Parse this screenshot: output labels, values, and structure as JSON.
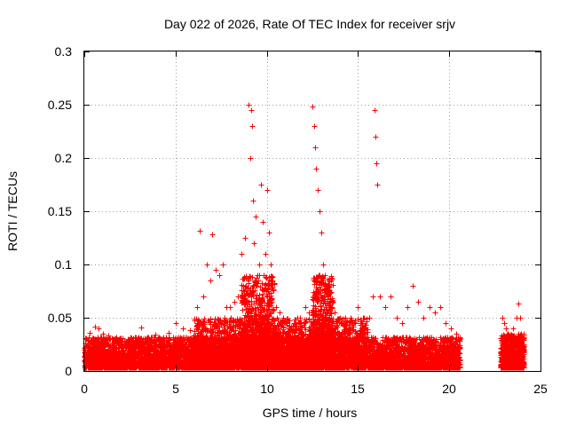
{
  "chart_data": {
    "type": "scatter",
    "title": "Day 022 of 2026, Rate Of TEC Index for receiver srjv",
    "xlabel": "GPS time / hours",
    "ylabel": "ROTI / TECUs",
    "xlim": [
      0,
      25
    ],
    "ylim": [
      0,
      0.3
    ],
    "x_ticks": [
      "0",
      "5",
      "10",
      "15",
      "20",
      "25"
    ],
    "y_ticks": [
      "0",
      "0.05",
      "0.1",
      "0.15",
      "0.2",
      "0.25",
      "0.3"
    ],
    "x_tick_values": [
      0,
      5,
      10,
      15,
      20,
      25
    ],
    "y_tick_values": [
      0,
      0.05,
      0.1,
      0.15,
      0.2,
      0.25,
      0.3
    ],
    "grid": true,
    "marker": "plus",
    "color": "#ff0000",
    "series": [
      {
        "x": [
          0.1,
          0.3,
          0.6,
          0.8,
          1.0,
          1.3,
          1.6,
          2.0,
          2.4,
          2.8,
          3.1,
          3.5,
          3.9,
          4.2,
          4.6,
          5.0,
          5.4,
          5.8,
          6.2,
          6.3,
          6.5,
          6.7,
          6.9,
          7.0,
          7.2,
          7.4,
          7.6,
          7.8,
          8.0,
          8.2,
          8.4,
          8.6,
          8.8,
          9.0,
          9.1,
          9.15,
          9.2,
          9.25,
          9.3,
          9.4,
          9.5,
          9.6,
          9.7,
          9.8,
          9.9,
          10.0,
          10.1,
          10.2,
          10.3,
          10.5,
          10.7,
          10.9,
          11.2,
          11.5,
          11.8,
          12.1,
          12.3,
          12.5,
          12.6,
          12.65,
          12.7,
          12.8,
          12.9,
          13.0,
          13.1,
          13.2,
          13.3,
          13.5,
          13.7,
          14.0,
          14.3,
          14.6,
          15.0,
          15.3,
          15.6,
          15.8,
          15.9,
          15.95,
          16.0,
          16.05,
          16.2,
          16.5,
          16.8,
          17.1,
          17.4,
          17.7,
          18.0,
          18.3,
          18.6,
          18.9,
          19.2,
          19.5,
          19.8,
          20.1,
          20.4,
          22.9,
          23.0,
          23.1,
          23.2,
          23.3,
          23.5,
          23.7,
          23.8,
          23.9
        ],
        "y": [
          0.03,
          0.036,
          0.042,
          0.04,
          0.035,
          0.033,
          0.03,
          0.028,
          0.03,
          0.029,
          0.041,
          0.032,
          0.034,
          0.03,
          0.036,
          0.045,
          0.04,
          0.038,
          0.06,
          0.132,
          0.07,
          0.1,
          0.085,
          0.128,
          0.095,
          0.09,
          0.1,
          0.06,
          0.06,
          0.065,
          0.07,
          0.11,
          0.125,
          0.25,
          0.2,
          0.245,
          0.23,
          0.16,
          0.12,
          0.145,
          0.09,
          0.1,
          0.175,
          0.14,
          0.11,
          0.17,
          0.13,
          0.1,
          0.085,
          0.06,
          0.055,
          0.05,
          0.04,
          0.045,
          0.05,
          0.06,
          0.055,
          0.248,
          0.23,
          0.21,
          0.19,
          0.17,
          0.15,
          0.13,
          0.1,
          0.09,
          0.08,
          0.06,
          0.055,
          0.05,
          0.05,
          0.05,
          0.06,
          0.05,
          0.05,
          0.07,
          0.245,
          0.22,
          0.195,
          0.175,
          0.07,
          0.06,
          0.07,
          0.05,
          0.045,
          0.06,
          0.08,
          0.065,
          0.05,
          0.06,
          0.055,
          0.06,
          0.045,
          0.04,
          0.035,
          0.05,
          0.045,
          0.04,
          0.035,
          0.03,
          0.04,
          0.05,
          0.063,
          0.05
        ]
      }
    ],
    "density": [
      {
        "x0": 0.0,
        "x1": 20.6,
        "y0": 0.003,
        "y1": 0.032,
        "n": 9000
      },
      {
        "x0": 6.0,
        "x1": 15.5,
        "y0": 0.01,
        "y1": 0.05,
        "n": 2500
      },
      {
        "x0": 8.6,
        "x1": 10.4,
        "y0": 0.02,
        "y1": 0.09,
        "n": 700
      },
      {
        "x0": 12.5,
        "x1": 13.6,
        "y0": 0.02,
        "y1": 0.09,
        "n": 600
      },
      {
        "x0": 22.8,
        "x1": 24.1,
        "y0": 0.003,
        "y1": 0.035,
        "n": 900
      }
    ]
  }
}
